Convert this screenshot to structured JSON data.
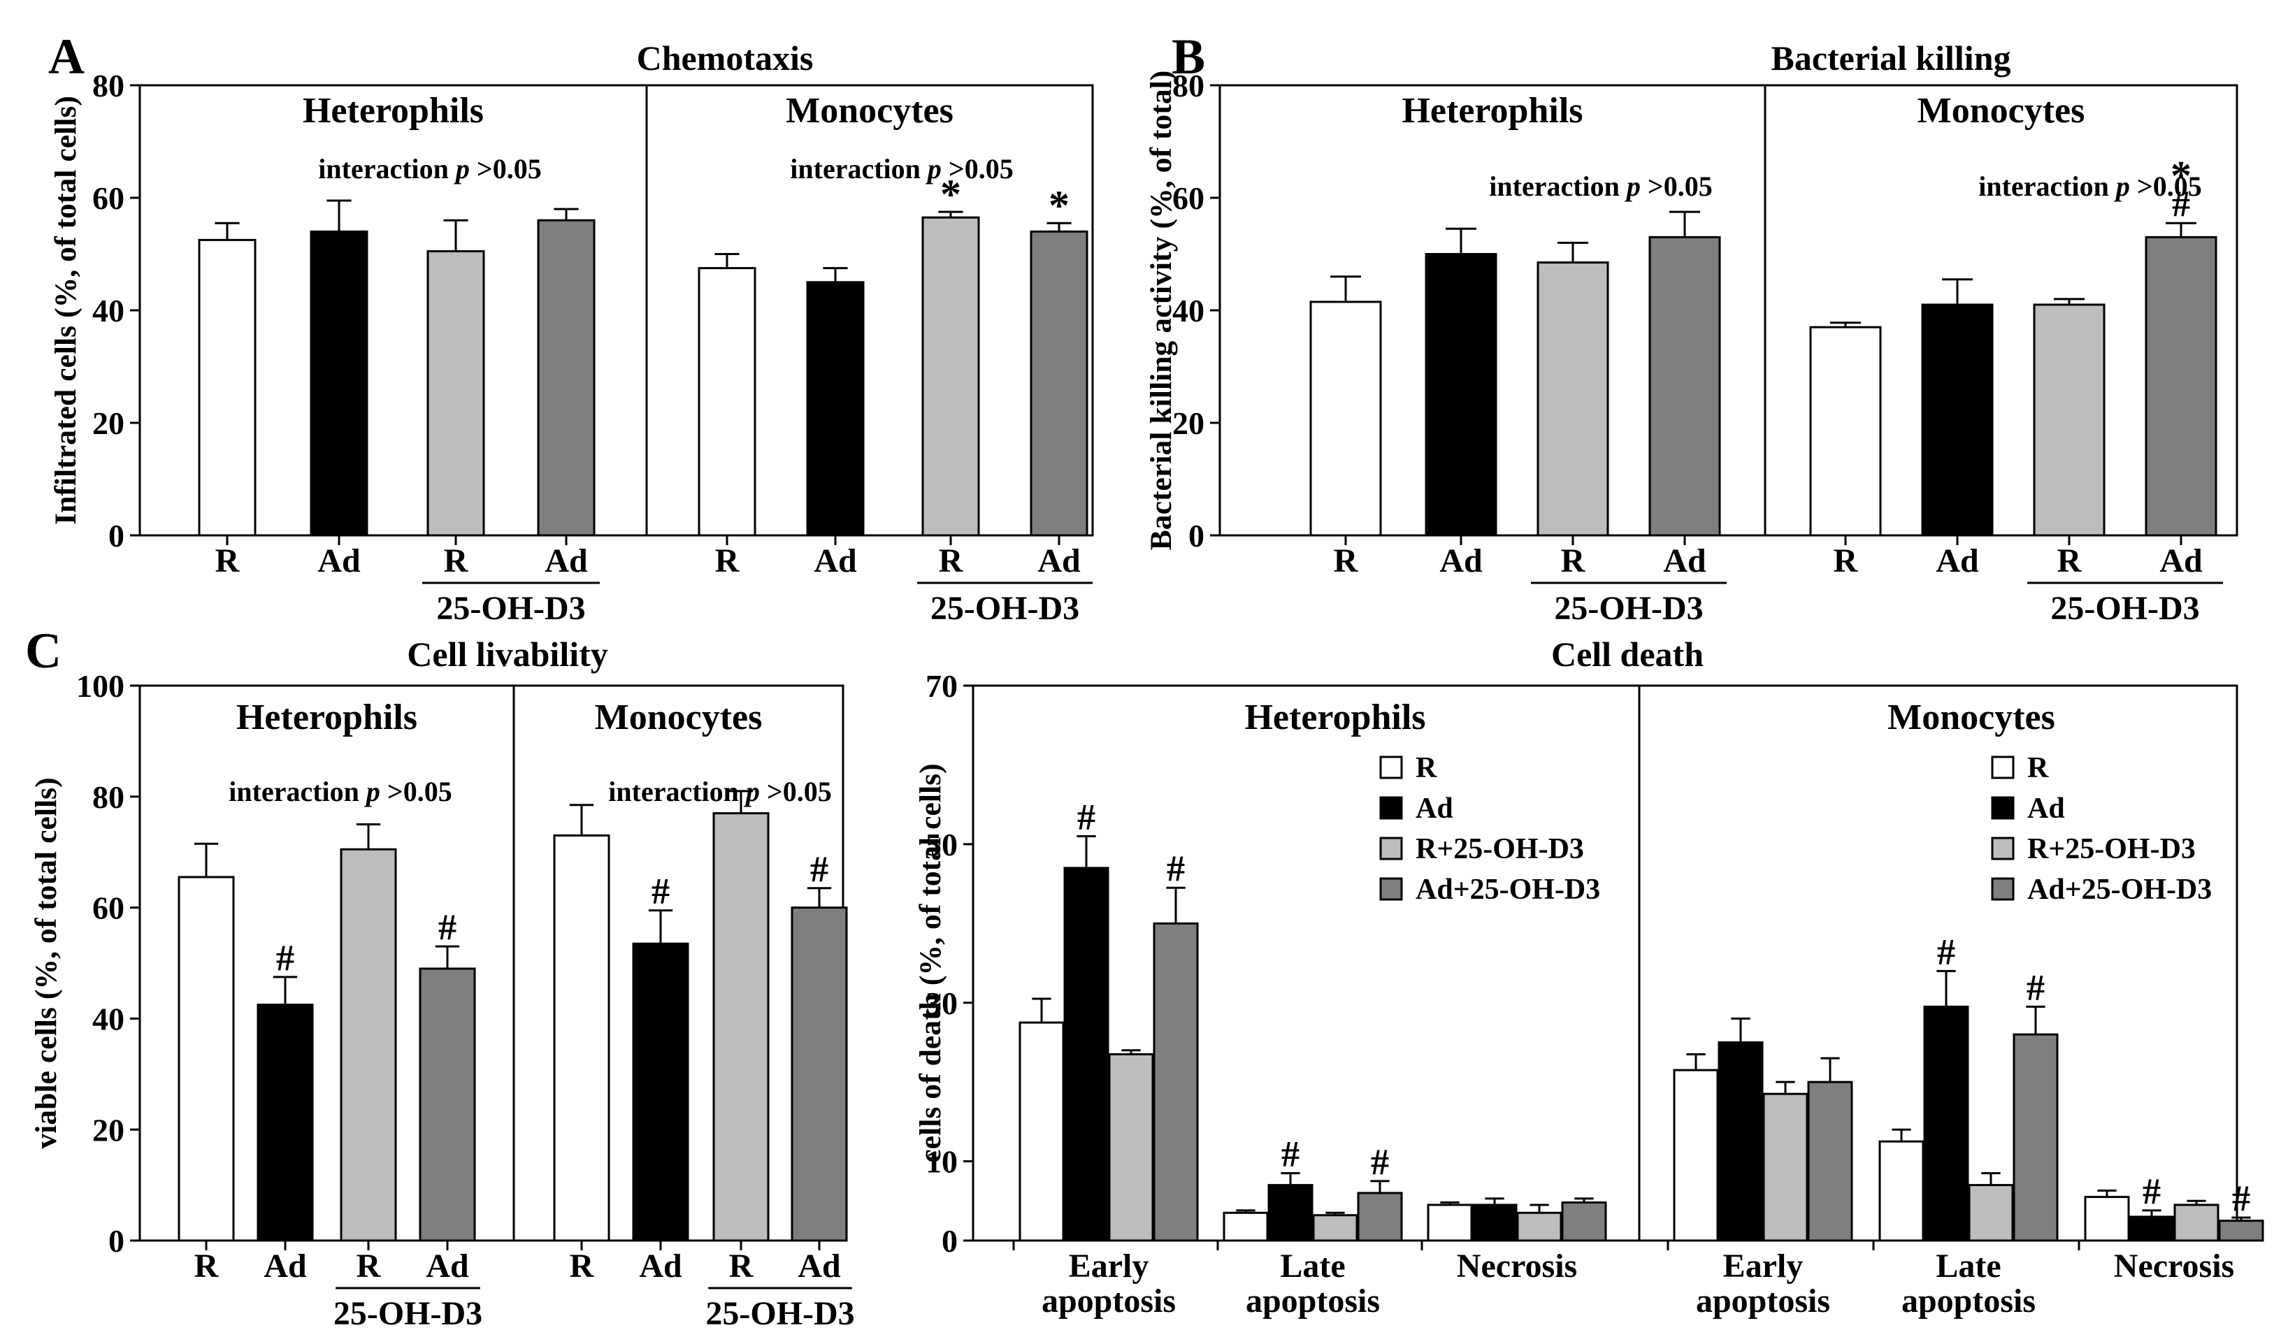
{
  "panel_letters": [
    "A",
    "B",
    "C"
  ],
  "colors": {
    "R": "#ffffff",
    "Ad": "#000000",
    "R+25-OH-D3": "#bdbdbd",
    "Ad+25-OH-D3": "#7f7f7f",
    "axis": "#000000"
  },
  "chart_data": [
    {
      "panel": "A",
      "type": "bar",
      "title": "Chemotaxis",
      "ylabel": "Infiltrated cells (%, of total cells)",
      "ylim": [
        0,
        80
      ],
      "yticks": [
        0,
        20,
        40,
        60,
        80
      ],
      "group_label": "25-OH-D3",
      "series_keys": [
        "R",
        "Ad",
        "R+25-OH-D3",
        "Ad+25-OH-D3"
      ],
      "categories": [
        "R",
        "Ad",
        "R",
        "Ad"
      ],
      "subpanels": [
        {
          "name": "Heterophils",
          "note_prefix": "interaction",
          "note_p": "p",
          "note_suffix": ">0.05",
          "values": [
            52.5,
            54,
            50.5,
            56
          ],
          "errors": [
            3,
            5.5,
            5.5,
            2
          ],
          "marks": [
            "",
            "",
            "",
            ""
          ]
        },
        {
          "name": "Monocytes",
          "note_prefix": "interaction",
          "note_p": "p",
          "note_suffix": ">0.05",
          "values": [
            47.5,
            45,
            56.5,
            54
          ],
          "errors": [
            2.5,
            2.5,
            1,
            1.5
          ],
          "marks": [
            "",
            "",
            "*",
            "*"
          ]
        }
      ]
    },
    {
      "panel": "B",
      "type": "bar",
      "title": "Bacterial killing",
      "ylabel": "Bacterial killing activity (%, of total)",
      "ylim": [
        0,
        80
      ],
      "yticks": [
        0,
        20,
        40,
        60,
        80
      ],
      "group_label": "25-OH-D3",
      "series_keys": [
        "R",
        "Ad",
        "R+25-OH-D3",
        "Ad+25-OH-D3"
      ],
      "categories": [
        "R",
        "Ad",
        "R",
        "Ad"
      ],
      "subpanels": [
        {
          "name": "Heterophils",
          "note_prefix": "interaction",
          "note_p": "p",
          "note_suffix": ">0.05",
          "values": [
            41.5,
            50,
            48.5,
            53
          ],
          "errors": [
            4.5,
            4.5,
            3.5,
            4.5
          ],
          "marks": [
            "",
            "",
            "",
            ""
          ]
        },
        {
          "name": "Monocytes",
          "note_prefix": "interaction",
          "note_p": "p",
          "note_suffix": ">0.05",
          "values": [
            37,
            41,
            41,
            53
          ],
          "errors": [
            0.8,
            4.5,
            1,
            2.5
          ],
          "marks": [
            "",
            "",
            "",
            "*#"
          ]
        }
      ]
    },
    {
      "panel": "C",
      "type": "bar",
      "title": "Cell livability",
      "ylabel": "viable cells (%, of total cells)",
      "ylim": [
        0,
        100
      ],
      "yticks": [
        0,
        20,
        40,
        60,
        80,
        100
      ],
      "group_label": "25-OH-D3",
      "series_keys": [
        "R",
        "Ad",
        "R+25-OH-D3",
        "Ad+25-OH-D3"
      ],
      "categories": [
        "R",
        "Ad",
        "R",
        "Ad"
      ],
      "subpanels": [
        {
          "name": "Heterophils",
          "note_prefix": "interaction",
          "note_p": "p",
          "note_suffix": ">0.05",
          "values": [
            65.5,
            42.5,
            70.5,
            49
          ],
          "errors": [
            6,
            5,
            4.5,
            4
          ],
          "marks": [
            "",
            "#",
            "",
            "#"
          ]
        },
        {
          "name": "Monocytes",
          "note_prefix": "interaction",
          "note_p": "p",
          "note_suffix": ">0.05",
          "values": [
            73,
            53.5,
            77,
            60
          ],
          "errors": [
            5.5,
            6,
            4,
            3.5
          ],
          "marks": [
            "",
            "#",
            "",
            "#"
          ]
        }
      ]
    },
    {
      "panel": "C",
      "type": "bar",
      "title": "Cell death",
      "ylabel": "cells of death (%, of total cells)",
      "ylim": [
        0,
        70
      ],
      "yticks": [
        0,
        10,
        30,
        50,
        70
      ],
      "categories": [
        "Early apoptosis",
        "Late apoptosis",
        "Necrosis"
      ],
      "category_lines": [
        [
          "Early",
          "apoptosis"
        ],
        [
          "Late",
          "apoptosis"
        ],
        [
          "Necrosis"
        ]
      ],
      "legend": [
        "R",
        "Ad",
        "R+25-OH-D3",
        "Ad+25-OH-D3"
      ],
      "legend_position": "top-right",
      "subpanels": [
        {
          "name": "Heterophils",
          "series": [
            {
              "name": "R",
              "values": [
                27.5,
                3.5,
                4.5
              ],
              "errors": [
                3,
                0.3,
                0.3
              ],
              "marks": [
                "",
                "",
                ""
              ]
            },
            {
              "name": "Ad",
              "values": [
                47,
                7,
                4.5
              ],
              "errors": [
                4,
                1.5,
                0.8
              ],
              "marks": [
                "#",
                "#",
                ""
              ]
            },
            {
              "name": "R+25-OH-D3",
              "values": [
                23.5,
                3.2,
                3.5
              ],
              "errors": [
                0.5,
                0.3,
                1
              ],
              "marks": [
                "",
                "",
                ""
              ]
            },
            {
              "name": "Ad+25-OH-D3",
              "values": [
                40,
                6,
                4.8
              ],
              "errors": [
                4.5,
                1.5,
                0.5
              ],
              "marks": [
                "#",
                "#",
                ""
              ]
            }
          ]
        },
        {
          "name": "Monocytes",
          "series": [
            {
              "name": "R",
              "values": [
                21.5,
                12.5,
                5.5
              ],
              "errors": [
                2,
                1.5,
                0.8
              ],
              "marks": [
                "",
                "",
                ""
              ]
            },
            {
              "name": "Ad",
              "values": [
                25,
                29.5,
                3
              ],
              "errors": [
                3,
                4.5,
                0.8
              ],
              "marks": [
                "",
                "#",
                "#"
              ]
            },
            {
              "name": "R+25-OH-D3",
              "values": [
                18.5,
                7,
                4.5
              ],
              "errors": [
                1.5,
                1.5,
                0.5
              ],
              "marks": [
                "",
                "",
                ""
              ]
            },
            {
              "name": "Ad+25-OH-D3",
              "values": [
                20,
                26,
                2.5
              ],
              "errors": [
                3,
                3.5,
                0.4
              ],
              "marks": [
                "",
                "#",
                "#"
              ]
            }
          ]
        }
      ]
    }
  ]
}
